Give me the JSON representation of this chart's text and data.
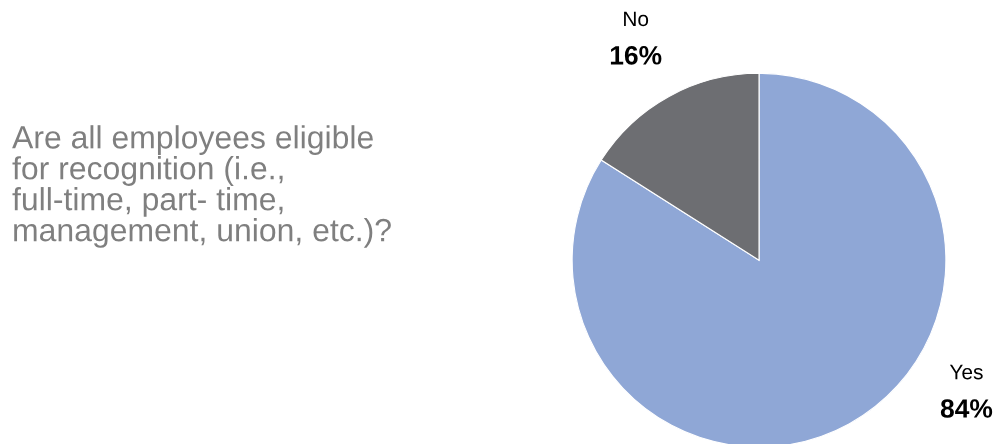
{
  "chart_data": {
    "type": "pie",
    "title": "Are all employees eligible\nfor recognition (i.e.,\nfull-time, part- time,\nmanagement, union, etc.)?",
    "categories": [
      "Yes",
      "No"
    ],
    "values": [
      84,
      16
    ],
    "colors": [
      "#8fa7d6",
      "#6d6e72"
    ],
    "value_labels": [
      "84%",
      "16%"
    ]
  }
}
